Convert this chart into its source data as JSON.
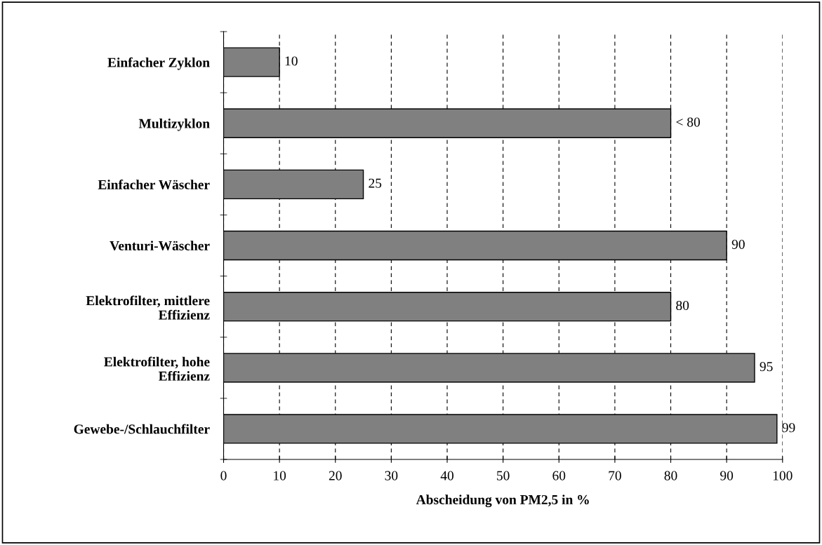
{
  "chart_data": {
    "type": "bar",
    "orientation": "horizontal",
    "xlabel": "Abscheidung von PM2,5 in %",
    "categories": [
      "Einfacher Zyklon",
      "Multizyklon",
      "Einfacher Wäscher",
      "Venturi-Wäscher",
      "Elektrofilter, mittlere\nEffizienz",
      "Elektrofilter, hohe\nEffizienz",
      "Gewebe-/Schlauchfilter"
    ],
    "values": [
      10,
      80,
      25,
      90,
      80,
      95,
      99
    ],
    "value_labels": [
      "10",
      "< 80",
      "25",
      "90",
      "80",
      "95",
      "99"
    ],
    "color": "#808080",
    "xlim": [
      0,
      100
    ],
    "xticks": [
      0,
      10,
      20,
      30,
      40,
      50,
      60,
      70,
      80,
      90,
      100
    ],
    "grid": "x",
    "legend": false
  }
}
